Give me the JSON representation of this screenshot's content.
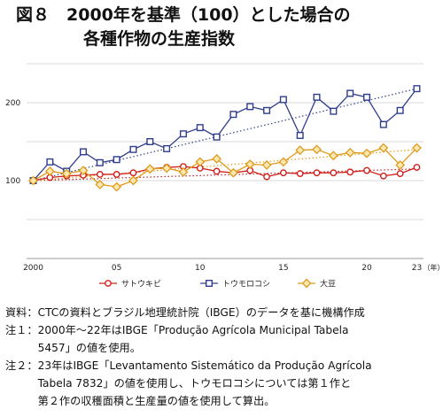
{
  "title": {
    "line1": "図８　2000年を基準（100）とした場合の",
    "line2": "各種作物の生産指数"
  },
  "chart_data": {
    "type": "line",
    "x": [
      2000,
      2001,
      2002,
      2003,
      2004,
      2005,
      2006,
      2007,
      2008,
      2009,
      2010,
      2011,
      2012,
      2013,
      2014,
      2015,
      2016,
      2017,
      2018,
      2019,
      2020,
      2021,
      2022,
      2023
    ],
    "xticks": [
      {
        "value": 2000,
        "label": "2000"
      },
      {
        "value": 2005,
        "label": "05"
      },
      {
        "value": 2010,
        "label": "10"
      },
      {
        "value": 2015,
        "label": "15"
      },
      {
        "value": 2020,
        "label": "20"
      },
      {
        "value": 2023,
        "label": "23"
      }
    ],
    "xunit": "（年）",
    "yticks": [
      {
        "value": 100,
        "label": "100"
      },
      {
        "value": 200,
        "label": "200"
      }
    ],
    "ylim": [
      0,
      250
    ],
    "xlim": [
      1999.6,
      2023.4
    ],
    "grid": true,
    "legend_position": "bottom",
    "series": [
      {
        "name": "サトウキビ",
        "color": "#d0201b",
        "marker": "circle",
        "values": [
          100,
          104,
          106,
          107,
          108,
          108,
          110,
          115,
          117,
          118,
          116,
          112,
          110,
          113,
          105,
          110,
          109,
          110,
          110,
          111,
          113,
          106,
          109,
          117
        ],
        "trend": [
          100,
          115
        ]
      },
      {
        "name": "トウモロコシ",
        "color": "#2f3e8c",
        "marker": "square",
        "values": [
          100,
          124,
          112,
          137,
          123,
          127,
          140,
          150,
          141,
          160,
          168,
          156,
          185,
          195,
          190,
          204,
          158,
          207,
          189,
          212,
          207,
          172,
          190,
          218
        ],
        "trend": [
          100,
          218
        ]
      },
      {
        "name": "大豆",
        "color": "#e09a1c",
        "marker": "diamond",
        "values": [
          100,
          112,
          109,
          113,
          95,
          92,
          100,
          115,
          116,
          111,
          124,
          128,
          110,
          121,
          120,
          124,
          139,
          140,
          132,
          136,
          135,
          142,
          120,
          142
        ],
        "trend": [
          100,
          140
        ]
      }
    ]
  },
  "notes": [
    {
      "label": "資料：",
      "lines": [
        "CTCの資料とブラジル地理統計院（IBGE）のデータを基に機構作成"
      ]
    },
    {
      "label": "注１：",
      "lines": [
        "2000年～22年はIBGE「Produção Agrícola Municipal Tabela",
        "5457」の値を使用。"
      ]
    },
    {
      "label": "注２：",
      "lines": [
        "23年はIBGE「Levantamento Sistemático da Produção Agrícola",
        "Tabela 7832」の値を使用し、トウモロコシについては第１作と",
        "第２作の収穫面積と生産量の値を使用して算出。"
      ]
    }
  ]
}
